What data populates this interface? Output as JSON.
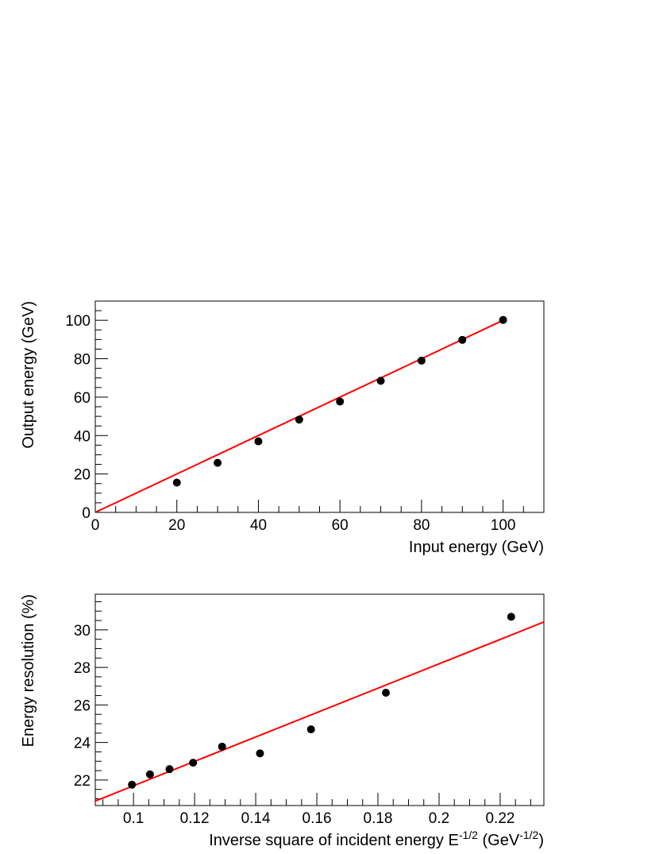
{
  "chart_data": [
    {
      "type": "scatter",
      "title": "",
      "xlabel": "Input energy (GeV)",
      "ylabel": "Output energy (GeV)",
      "xlim": [
        0,
        110
      ],
      "ylim": [
        0,
        110
      ],
      "xticks": [
        0,
        20,
        40,
        60,
        80,
        100
      ],
      "yticks": [
        0,
        20,
        40,
        60,
        80,
        100
      ],
      "x_minor_step": 5,
      "y_minor_step": 5,
      "grid": false,
      "points": {
        "x": [
          20,
          30,
          40,
          50,
          60,
          70,
          80,
          90,
          100
        ],
        "y": [
          15.5,
          25.8,
          37.0,
          48.3,
          57.7,
          68.5,
          79.0,
          89.8,
          100.2
        ]
      },
      "fit_line": {
        "x": [
          0,
          100
        ],
        "y": [
          0,
          100
        ],
        "color": "#ff0000"
      },
      "marker_color": "#000000"
    },
    {
      "type": "scatter",
      "title": "",
      "xlabel": "Inverse square of incident energy E",
      "xlabel_sup": "-1/2",
      "xlabel_unit": " (GeV",
      "xlabel_unit_sup": "-1/2",
      "xlabel_close": ")",
      "ylabel": "Energy resolution (%)",
      "xlim": [
        0.0875,
        0.2343
      ],
      "ylim": [
        20.64,
        31.9
      ],
      "xticks": [
        0.1,
        0.12,
        0.14,
        0.16,
        0.18,
        0.2,
        0.22
      ],
      "xtick_labels": [
        "0.1",
        "0.12",
        "0.14",
        "0.16",
        "0.18",
        "0.2",
        "0.22"
      ],
      "yticks": [
        22,
        24,
        26,
        28,
        30
      ],
      "x_minor_step": 0.005,
      "y_minor_step": 0.5,
      "grid": false,
      "points": {
        "x": [
          0.0995,
          0.1054,
          0.1118,
          0.1195,
          0.129,
          0.1414,
          0.1581,
          0.1826,
          0.2236
        ],
        "y": [
          21.75,
          22.3,
          22.58,
          22.92,
          23.78,
          23.42,
          24.7,
          26.65,
          30.7
        ],
        "yerr": [
          0.05,
          0.05,
          0.05,
          0.05,
          0.05,
          0.05,
          0.05,
          0.12,
          0.2
        ]
      },
      "fit_line": {
        "x": [
          0.0875,
          0.2343
        ],
        "y": [
          20.88,
          30.42
        ],
        "color": "#ff0000"
      },
      "marker_color": "#000000"
    }
  ]
}
